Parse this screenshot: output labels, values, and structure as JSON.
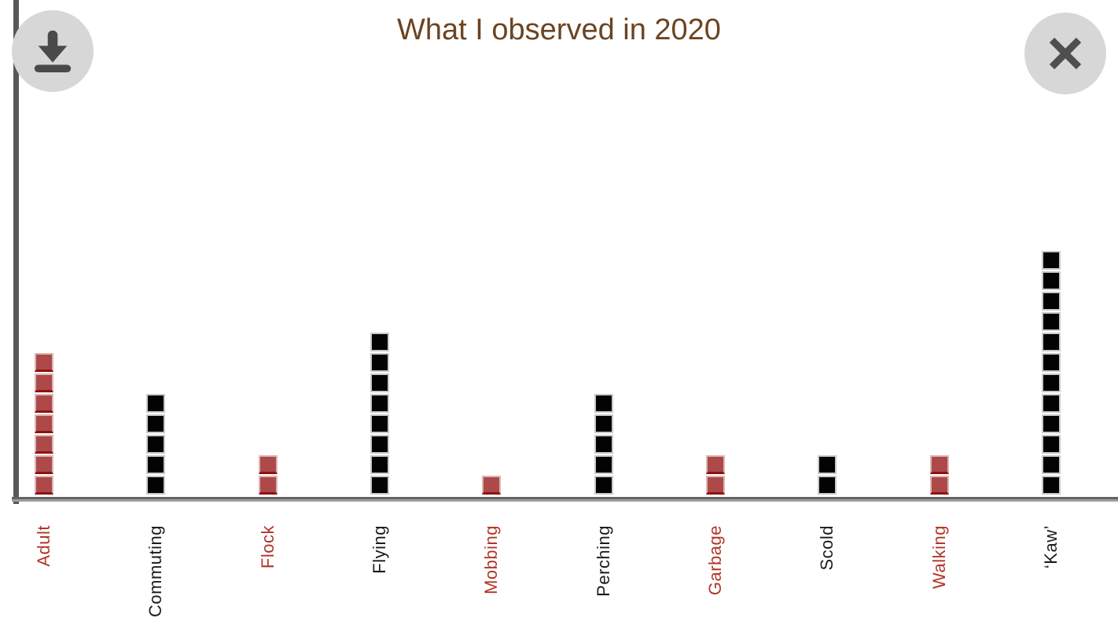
{
  "header": {
    "title": "What I observed in 2020"
  },
  "toolbar": {
    "download_icon": "download-icon",
    "close_icon": "close-icon"
  },
  "colors": {
    "title": "#6b4423",
    "red_square": "#ae4949",
    "red_square_bottom_edge": "#8f1111",
    "red_square_border": "#dcb6b6",
    "black_square": "#030303",
    "black_square_border": "#c9c9c9",
    "red_label": "#b2352a",
    "black_label": "#1b1b1b",
    "axis_vertical": "#58585a",
    "axis_horizontal": "#646464",
    "button_background": "#d7d7d7",
    "button_icon": "#4a4a4a"
  },
  "chart_data": {
    "type": "bar",
    "style": "pictograph of stacked unit squares, one square per observation",
    "title": "What I observed in 2020",
    "categories": [
      "Adult",
      "Commuting",
      "Flock",
      "Flying",
      "Mobbing",
      "Perching",
      "Garbage",
      "Scold",
      "Walking",
      "‘Kaw’"
    ],
    "values": [
      7,
      5,
      2,
      8,
      1,
      5,
      2,
      2,
      2,
      12
    ],
    "square_colors": [
      "red",
      "black",
      "red",
      "black",
      "red",
      "black",
      "red",
      "black",
      "red",
      "black"
    ],
    "label_colors": [
      "red",
      "black",
      "red",
      "black",
      "red",
      "black",
      "red",
      "black",
      "red",
      "black"
    ],
    "xlabel": "",
    "ylabel": "",
    "ylim": [
      0,
      12
    ],
    "grid": false,
    "legend": false,
    "x_tick_rotation": 90
  }
}
